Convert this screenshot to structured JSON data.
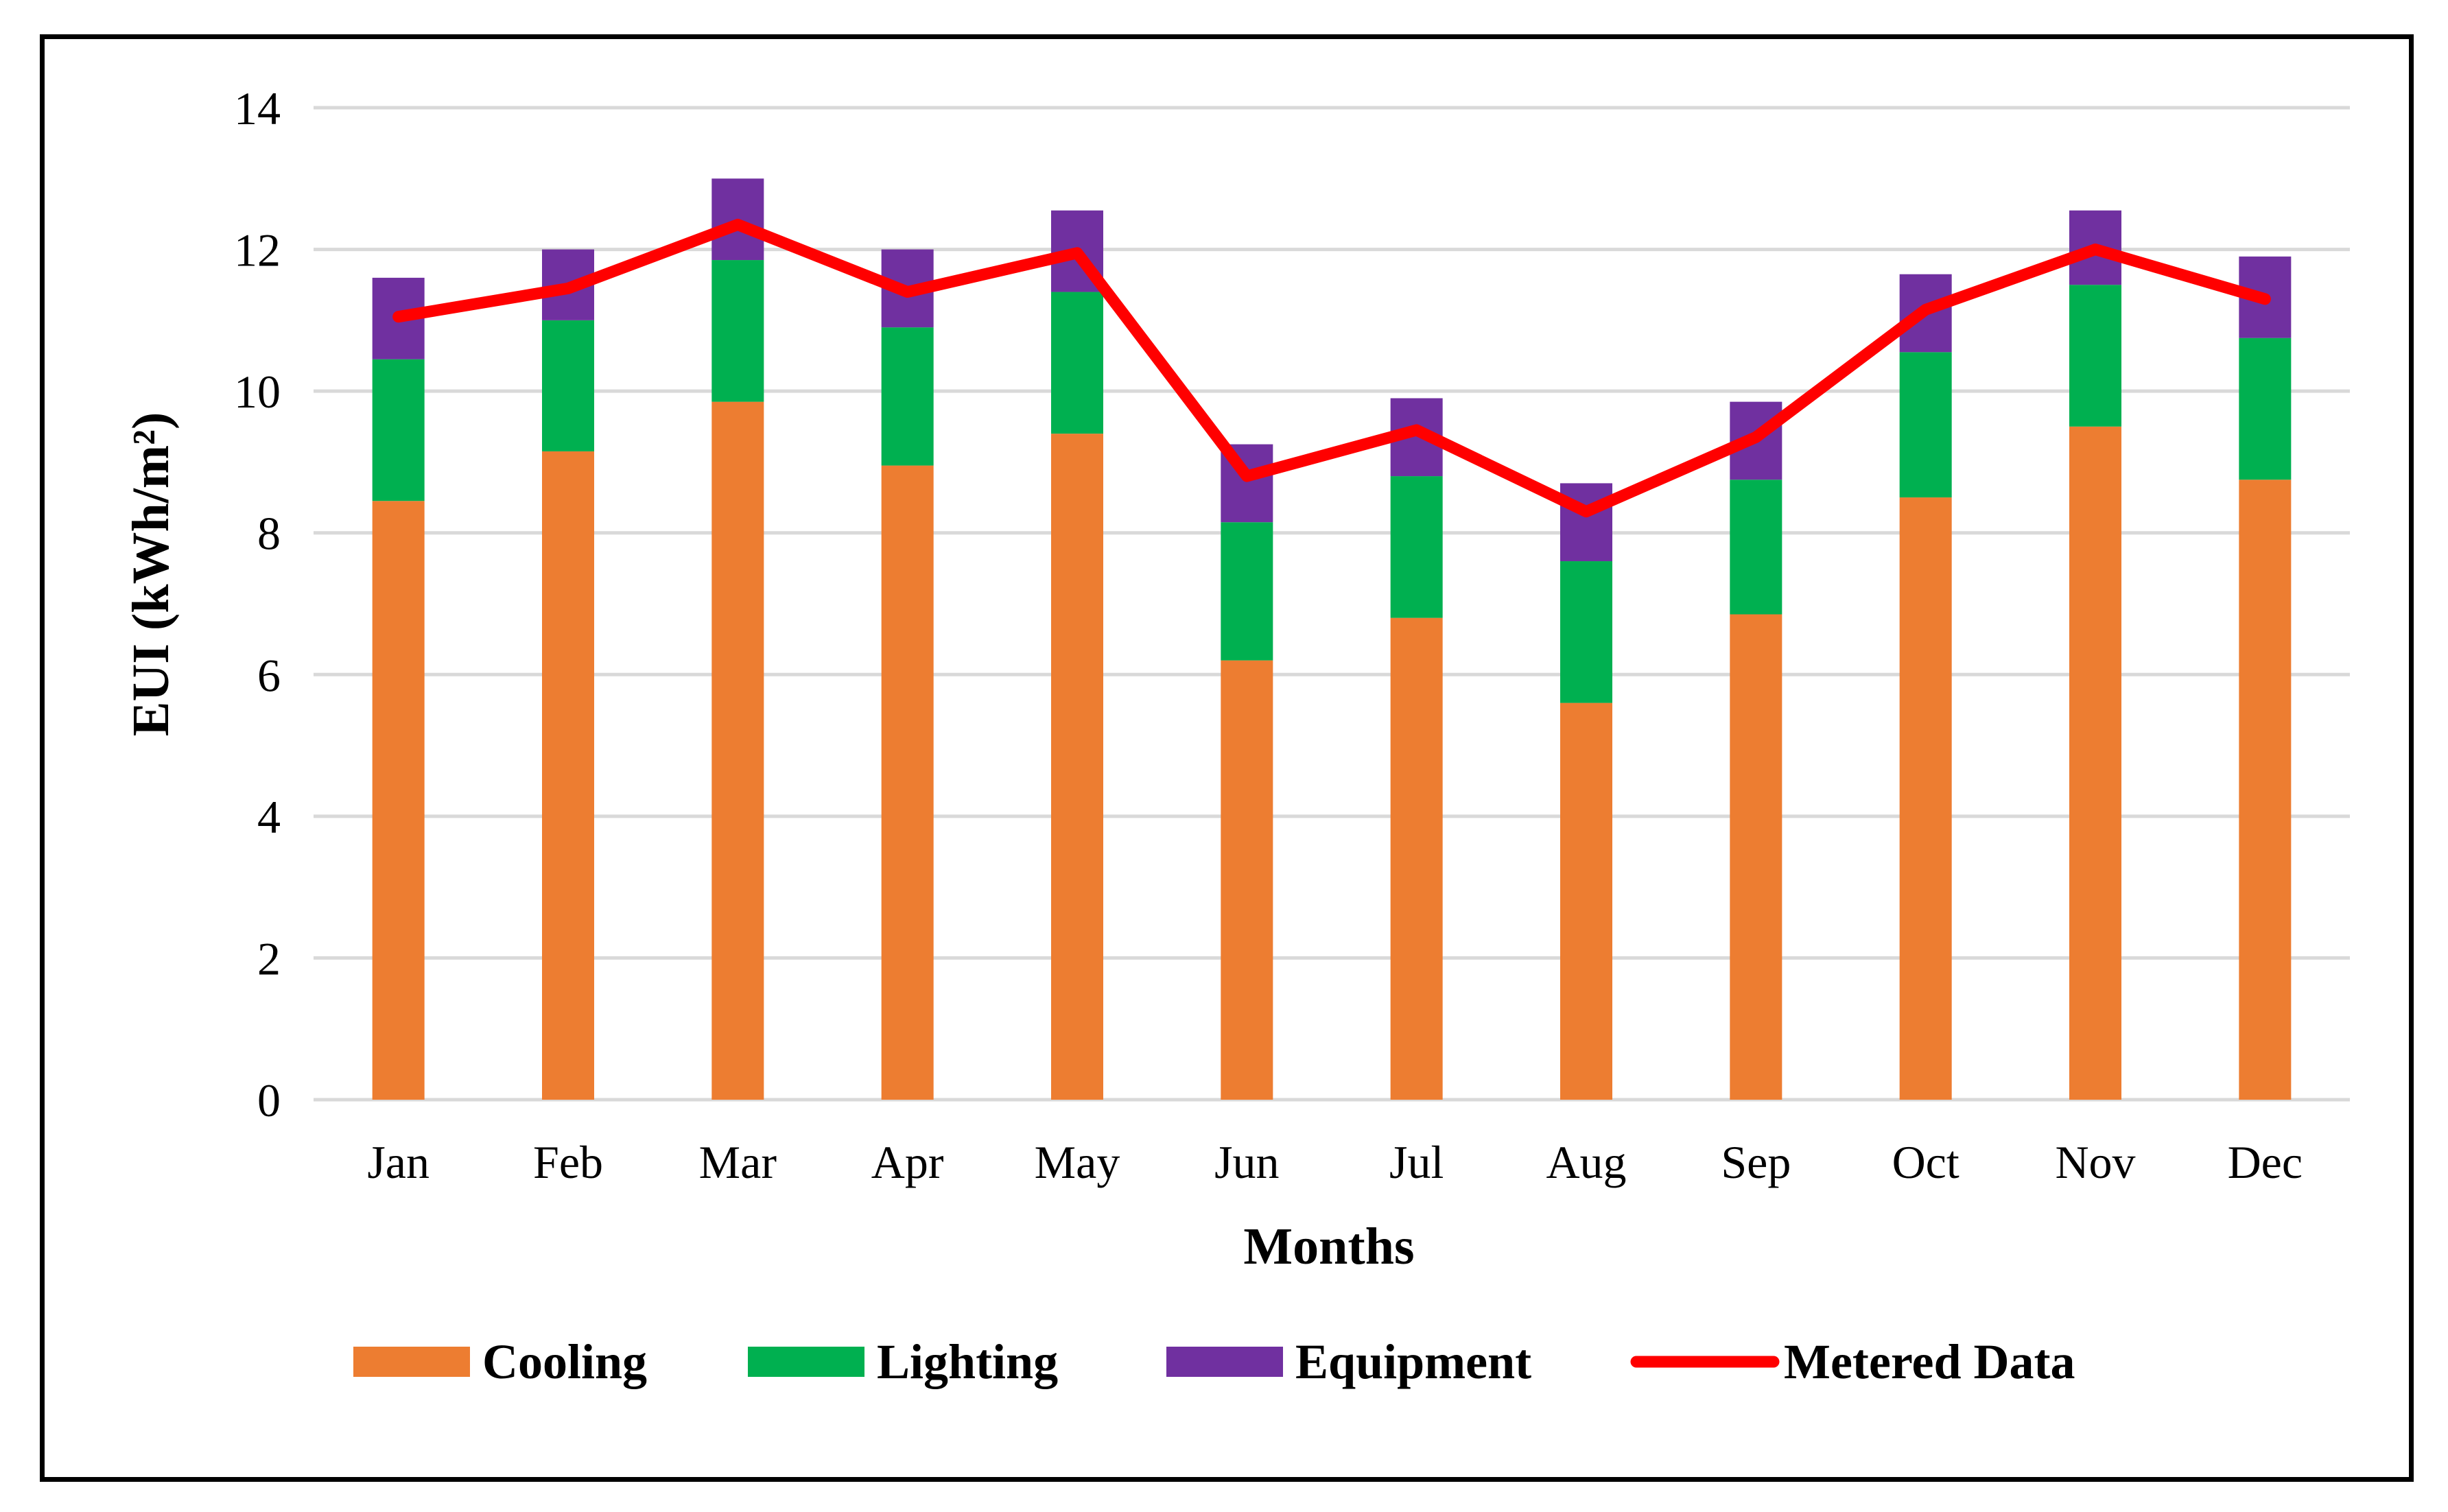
{
  "chart_data": {
    "type": "bar",
    "stacked": true,
    "title": "",
    "xlabel": "Months",
    "ylabel": "EUI (kWh/m²)",
    "ylim": [
      0,
      14
    ],
    "yticks": [
      0,
      2,
      4,
      6,
      8,
      10,
      12,
      14
    ],
    "grid": true,
    "legend_position": "bottom",
    "categories": [
      "Jan",
      "Feb",
      "Mar",
      "Apr",
      "May",
      "Jun",
      "Jul",
      "Aug",
      "Sep",
      "Oct",
      "Nov",
      "Dec"
    ],
    "series": [
      {
        "name": "Cooling",
        "type": "bar",
        "color": "#ed7d31",
        "values": [
          8.45,
          9.15,
          9.85,
          8.95,
          9.4,
          6.2,
          6.8,
          5.6,
          6.85,
          8.5,
          9.5,
          8.75
        ]
      },
      {
        "name": "Lighting",
        "type": "bar",
        "color": "#00b050",
        "values": [
          2.0,
          1.85,
          2.0,
          1.95,
          2.0,
          1.95,
          2.0,
          2.0,
          1.9,
          2.05,
          2.0,
          2.0
        ]
      },
      {
        "name": "Equipment",
        "type": "bar",
        "color": "#7030a0",
        "values": [
          1.15,
          1.0,
          1.15,
          1.1,
          1.15,
          1.1,
          1.1,
          1.1,
          1.1,
          1.1,
          1.05,
          1.15
        ]
      },
      {
        "name": "Metered Data",
        "type": "line",
        "color": "#ff0000",
        "values": [
          11.05,
          11.45,
          12.35,
          11.4,
          11.95,
          8.8,
          9.45,
          8.3,
          9.35,
          11.15,
          12.0,
          11.3
        ]
      }
    ]
  }
}
